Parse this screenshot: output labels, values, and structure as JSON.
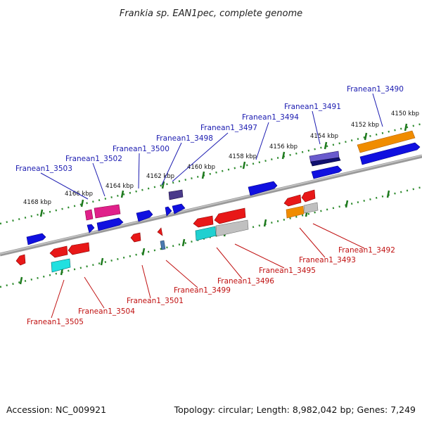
{
  "title": "Frankia sp. EAN1pec, complete genome",
  "footer": {
    "accession": "Accession: NC_009921",
    "summary": "Topology: circular; Length: 8,982,042 bp; Genes: 7,249"
  },
  "colors": {
    "backbone": "#8a8a8a",
    "tick": "#1e7a1e",
    "top_label": "#1a1ab0",
    "bottom_label": "#c01010"
  },
  "tick_labels": [
    "4150 kbp",
    "4152 kbp",
    "4154 kbp",
    "4156 kbp",
    "4158 kbp",
    "4160 kbp",
    "4162 kbp",
    "4164 kbp",
    "4166 kbp",
    "4168 kbp"
  ],
  "top_strand_genes": [
    "Franean1_3490",
    "Franean1_3491",
    "Franean1_3494",
    "Franean1_3497",
    "Franean1_3498",
    "Franean1_3500",
    "Franean1_3502",
    "Franean1_3503"
  ],
  "bottom_strand_genes": [
    "Franean1_3492",
    "Franean1_3493",
    "Franean1_3495",
    "Franean1_3496",
    "Franean1_3499",
    "Franean1_3501",
    "Franean1_3504",
    "Franean1_3505"
  ]
}
